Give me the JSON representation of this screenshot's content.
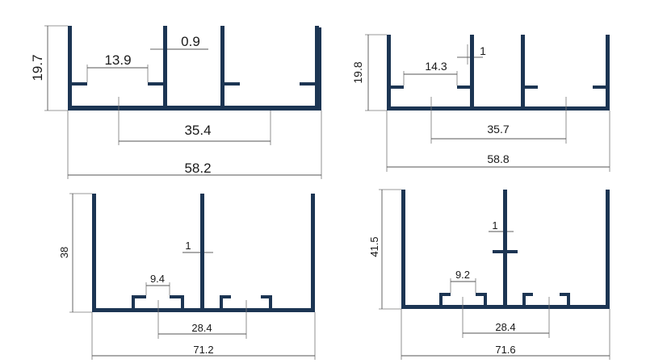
{
  "colors": {
    "profile": "#1c3553",
    "dimension_line": "#555555",
    "background": "#ffffff"
  },
  "profiles": [
    {
      "name": "profile-1",
      "dimensions": {
        "height": "19.7",
        "gap": "13.9",
        "wall": "0.9",
        "center_span": "35.4",
        "overall_width": "58.2"
      }
    },
    {
      "name": "profile-2",
      "dimensions": {
        "height": "19.8",
        "gap": "14.3",
        "wall": "1",
        "center_span": "35.7",
        "overall_width": "58.8"
      }
    },
    {
      "name": "profile-3",
      "dimensions": {
        "height": "38",
        "slot": "9.4",
        "wall": "1",
        "center_span": "28.4",
        "overall_width": "71.2"
      }
    },
    {
      "name": "profile-4",
      "dimensions": {
        "height": "41.5",
        "slot": "9.2",
        "wall": "1",
        "center_span": "28.4",
        "overall_width": "71.6"
      }
    }
  ]
}
